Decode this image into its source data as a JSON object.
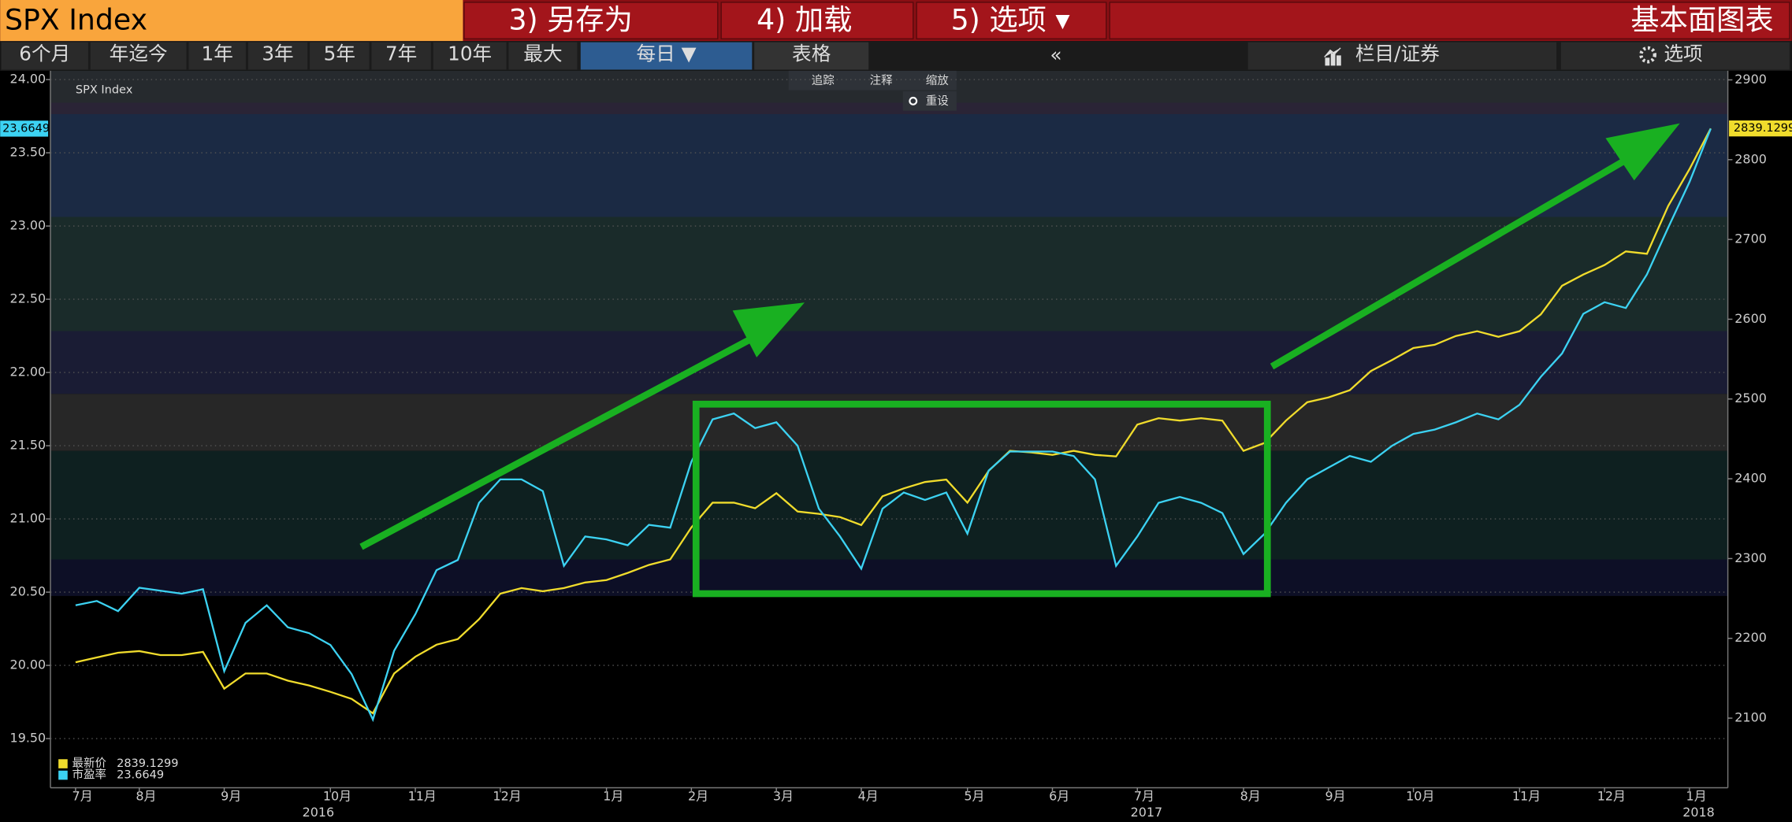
{
  "toolbar": {
    "ticker": "SPX Index",
    "buttons": [
      "3) 另存为",
      "4) 加载",
      "5) 选项 ▾"
    ],
    "title": "基本面图表"
  },
  "range_bar": {
    "ranges": [
      "6个月",
      "年迄今",
      "1年",
      "3年",
      "5年",
      "7年",
      "10年",
      "最大"
    ],
    "frequency": "每日 ▼",
    "table": "表格",
    "collapse": "«",
    "columns": "栏目/证券",
    "options": "选项"
  },
  "chart_tools": [
    "追踪",
    "注释",
    "缩放",
    "重设"
  ],
  "chart_data": {
    "type": "line",
    "title": "SPX Index",
    "categories": [
      "7月",
      null,
      null,
      "8月",
      null,
      null,
      null,
      "9月",
      null,
      null,
      null,
      null,
      "10月",
      null,
      null,
      null,
      "11月",
      null,
      null,
      null,
      "12月",
      null,
      null,
      null,
      null,
      "1月",
      null,
      null,
      null,
      "2月",
      null,
      null,
      null,
      "3月",
      null,
      null,
      null,
      "4月",
      null,
      null,
      null,
      null,
      "5月",
      null,
      null,
      null,
      "6月",
      null,
      null,
      null,
      "7月",
      null,
      null,
      null,
      null,
      "8月",
      null,
      null,
      null,
      "9月",
      null,
      null,
      null,
      "10月",
      null,
      null,
      null,
      null,
      "11月",
      null,
      null,
      null,
      "12月",
      null,
      null,
      null,
      "1月",
      null
    ],
    "year_labels": [
      null,
      null,
      null,
      null,
      null,
      null,
      null,
      null,
      null,
      null,
      null,
      "2016",
      null,
      null,
      null,
      null,
      null,
      null,
      null,
      null,
      null,
      null,
      null,
      null,
      null,
      null,
      null,
      null,
      null,
      null,
      null,
      null,
      null,
      null,
      null,
      null,
      null,
      null,
      null,
      null,
      null,
      null,
      null,
      null,
      null,
      null,
      null,
      null,
      null,
      null,
      "2017",
      null,
      null,
      null,
      null,
      null,
      null,
      null,
      null,
      null,
      null,
      null,
      null,
      null,
      null,
      null,
      null,
      null,
      null,
      null,
      null,
      null,
      null,
      null,
      null,
      null,
      "2018",
      null
    ],
    "series": [
      {
        "name": "最新价",
        "color": "#f0dc2c",
        "axis": "y2",
        "values": [
          2170,
          2176,
          2182,
          2184,
          2179,
          2179,
          2183,
          2137,
          2156,
          2156,
          2147,
          2141,
          2133,
          2124,
          2106,
          2156,
          2177,
          2192,
          2199,
          2224,
          2256,
          2263,
          2259,
          2263,
          2270,
          2273,
          2282,
          2292,
          2299,
          2339,
          2370,
          2370,
          2363,
          2382,
          2359,
          2356,
          2352,
          2342,
          2378,
          2388,
          2396,
          2399,
          2370,
          2410,
          2435,
          2433,
          2430,
          2435,
          2430,
          2428,
          2468,
          2476,
          2473,
          2476,
          2473,
          2435,
          2445,
          2473,
          2496,
          2502,
          2511,
          2535,
          2549,
          2564,
          2568,
          2579,
          2585,
          2578,
          2585,
          2606,
          2642,
          2656,
          2668,
          2685,
          2682,
          2742,
          2788,
          2839.1299
        ]
      },
      {
        "name": "市盈率",
        "color": "#3cd2f2",
        "values": [
          20.41,
          20.44,
          20.37,
          20.53,
          20.51,
          20.49,
          20.52,
          19.96,
          20.29,
          20.41,
          20.26,
          20.22,
          20.14,
          19.94,
          19.63,
          20.1,
          20.35,
          20.65,
          20.72,
          21.11,
          21.27,
          21.27,
          21.19,
          20.68,
          20.88,
          20.86,
          20.82,
          20.96,
          20.94,
          21.39,
          21.68,
          21.72,
          21.62,
          21.66,
          21.5,
          21.07,
          20.88,
          20.66,
          21.07,
          21.18,
          21.13,
          21.18,
          20.9,
          21.33,
          21.46,
          21.46,
          21.46,
          21.43,
          21.27,
          20.68,
          20.88,
          21.11,
          21.15,
          21.11,
          21.04,
          20.76,
          20.9,
          21.11,
          21.27,
          21.35,
          21.43,
          21.39,
          21.5,
          21.58,
          21.61,
          21.66,
          21.72,
          21.68,
          21.78,
          21.97,
          22.13,
          22.4,
          22.48,
          22.44,
          22.67,
          22.99,
          23.3,
          23.6649
        ]
      }
    ],
    "ylim": [
      19.18,
      24.06
    ],
    "yticks": [
      {
        "value": 19.5,
        "label": "19.50"
      },
      {
        "value": 20,
        "label": "20.00"
      },
      {
        "value": 20.5,
        "label": "20.50"
      },
      {
        "value": 21,
        "label": "21.00"
      },
      {
        "value": 21.5,
        "label": "21.50"
      },
      {
        "value": 22,
        "label": "22.00"
      },
      {
        "value": 22.5,
        "label": "22.50"
      },
      {
        "value": 23,
        "label": "23.00"
      },
      {
        "value": 23.5,
        "label": "23.50"
      },
      {
        "value": 24,
        "label": "24.00"
      }
    ],
    "y2lim": [
      2015.6,
      2911.4
    ],
    "y2ticks": [
      2100,
      2200,
      2300,
      2400,
      2500,
      2600,
      2700,
      2800,
      2900
    ],
    "grid": true
  }
}
